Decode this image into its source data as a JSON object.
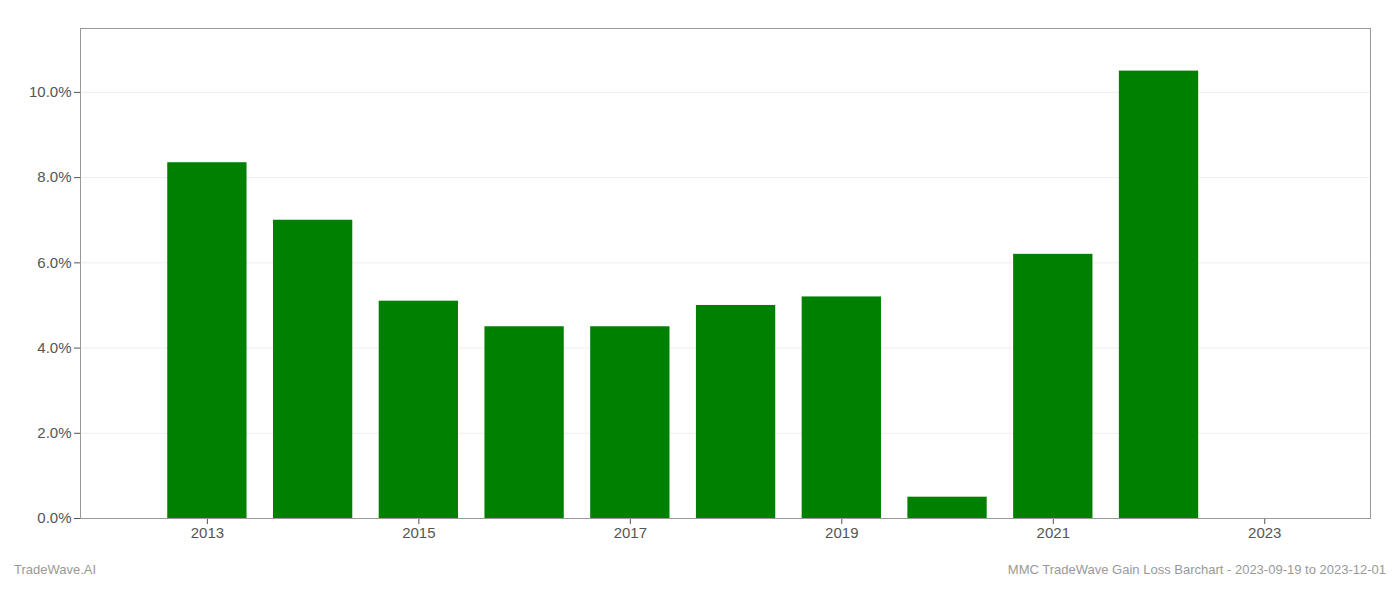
{
  "chart_data": {
    "type": "bar",
    "x": [
      2013,
      2014,
      2015,
      2016,
      2017,
      2018,
      2019,
      2020,
      2021,
      2022
    ],
    "values": [
      0.0835,
      0.07,
      0.051,
      0.045,
      0.045,
      0.05,
      0.052,
      0.005,
      0.062,
      0.105
    ],
    "color": "#008000",
    "xlim": [
      2011.8,
      2024.0
    ],
    "xticks": [
      2013,
      2015,
      2017,
      2019,
      2021,
      2023
    ],
    "ylim": [
      0,
      0.115
    ],
    "yticks": [
      {
        "value": 0.0,
        "label": "0.0%"
      },
      {
        "value": 0.02,
        "label": "2.0%"
      },
      {
        "value": 0.04,
        "label": "4.0%"
      },
      {
        "value": 0.06,
        "label": "6.0%"
      },
      {
        "value": 0.08,
        "label": "8.0%"
      },
      {
        "value": 0.1,
        "label": "10.0%"
      }
    ],
    "grid": true,
    "annotations": [
      "TradeWave.AI",
      "MMC TradeWave Gain Loss Barchart - 2023-09-19 to 2023-12-01"
    ]
  }
}
